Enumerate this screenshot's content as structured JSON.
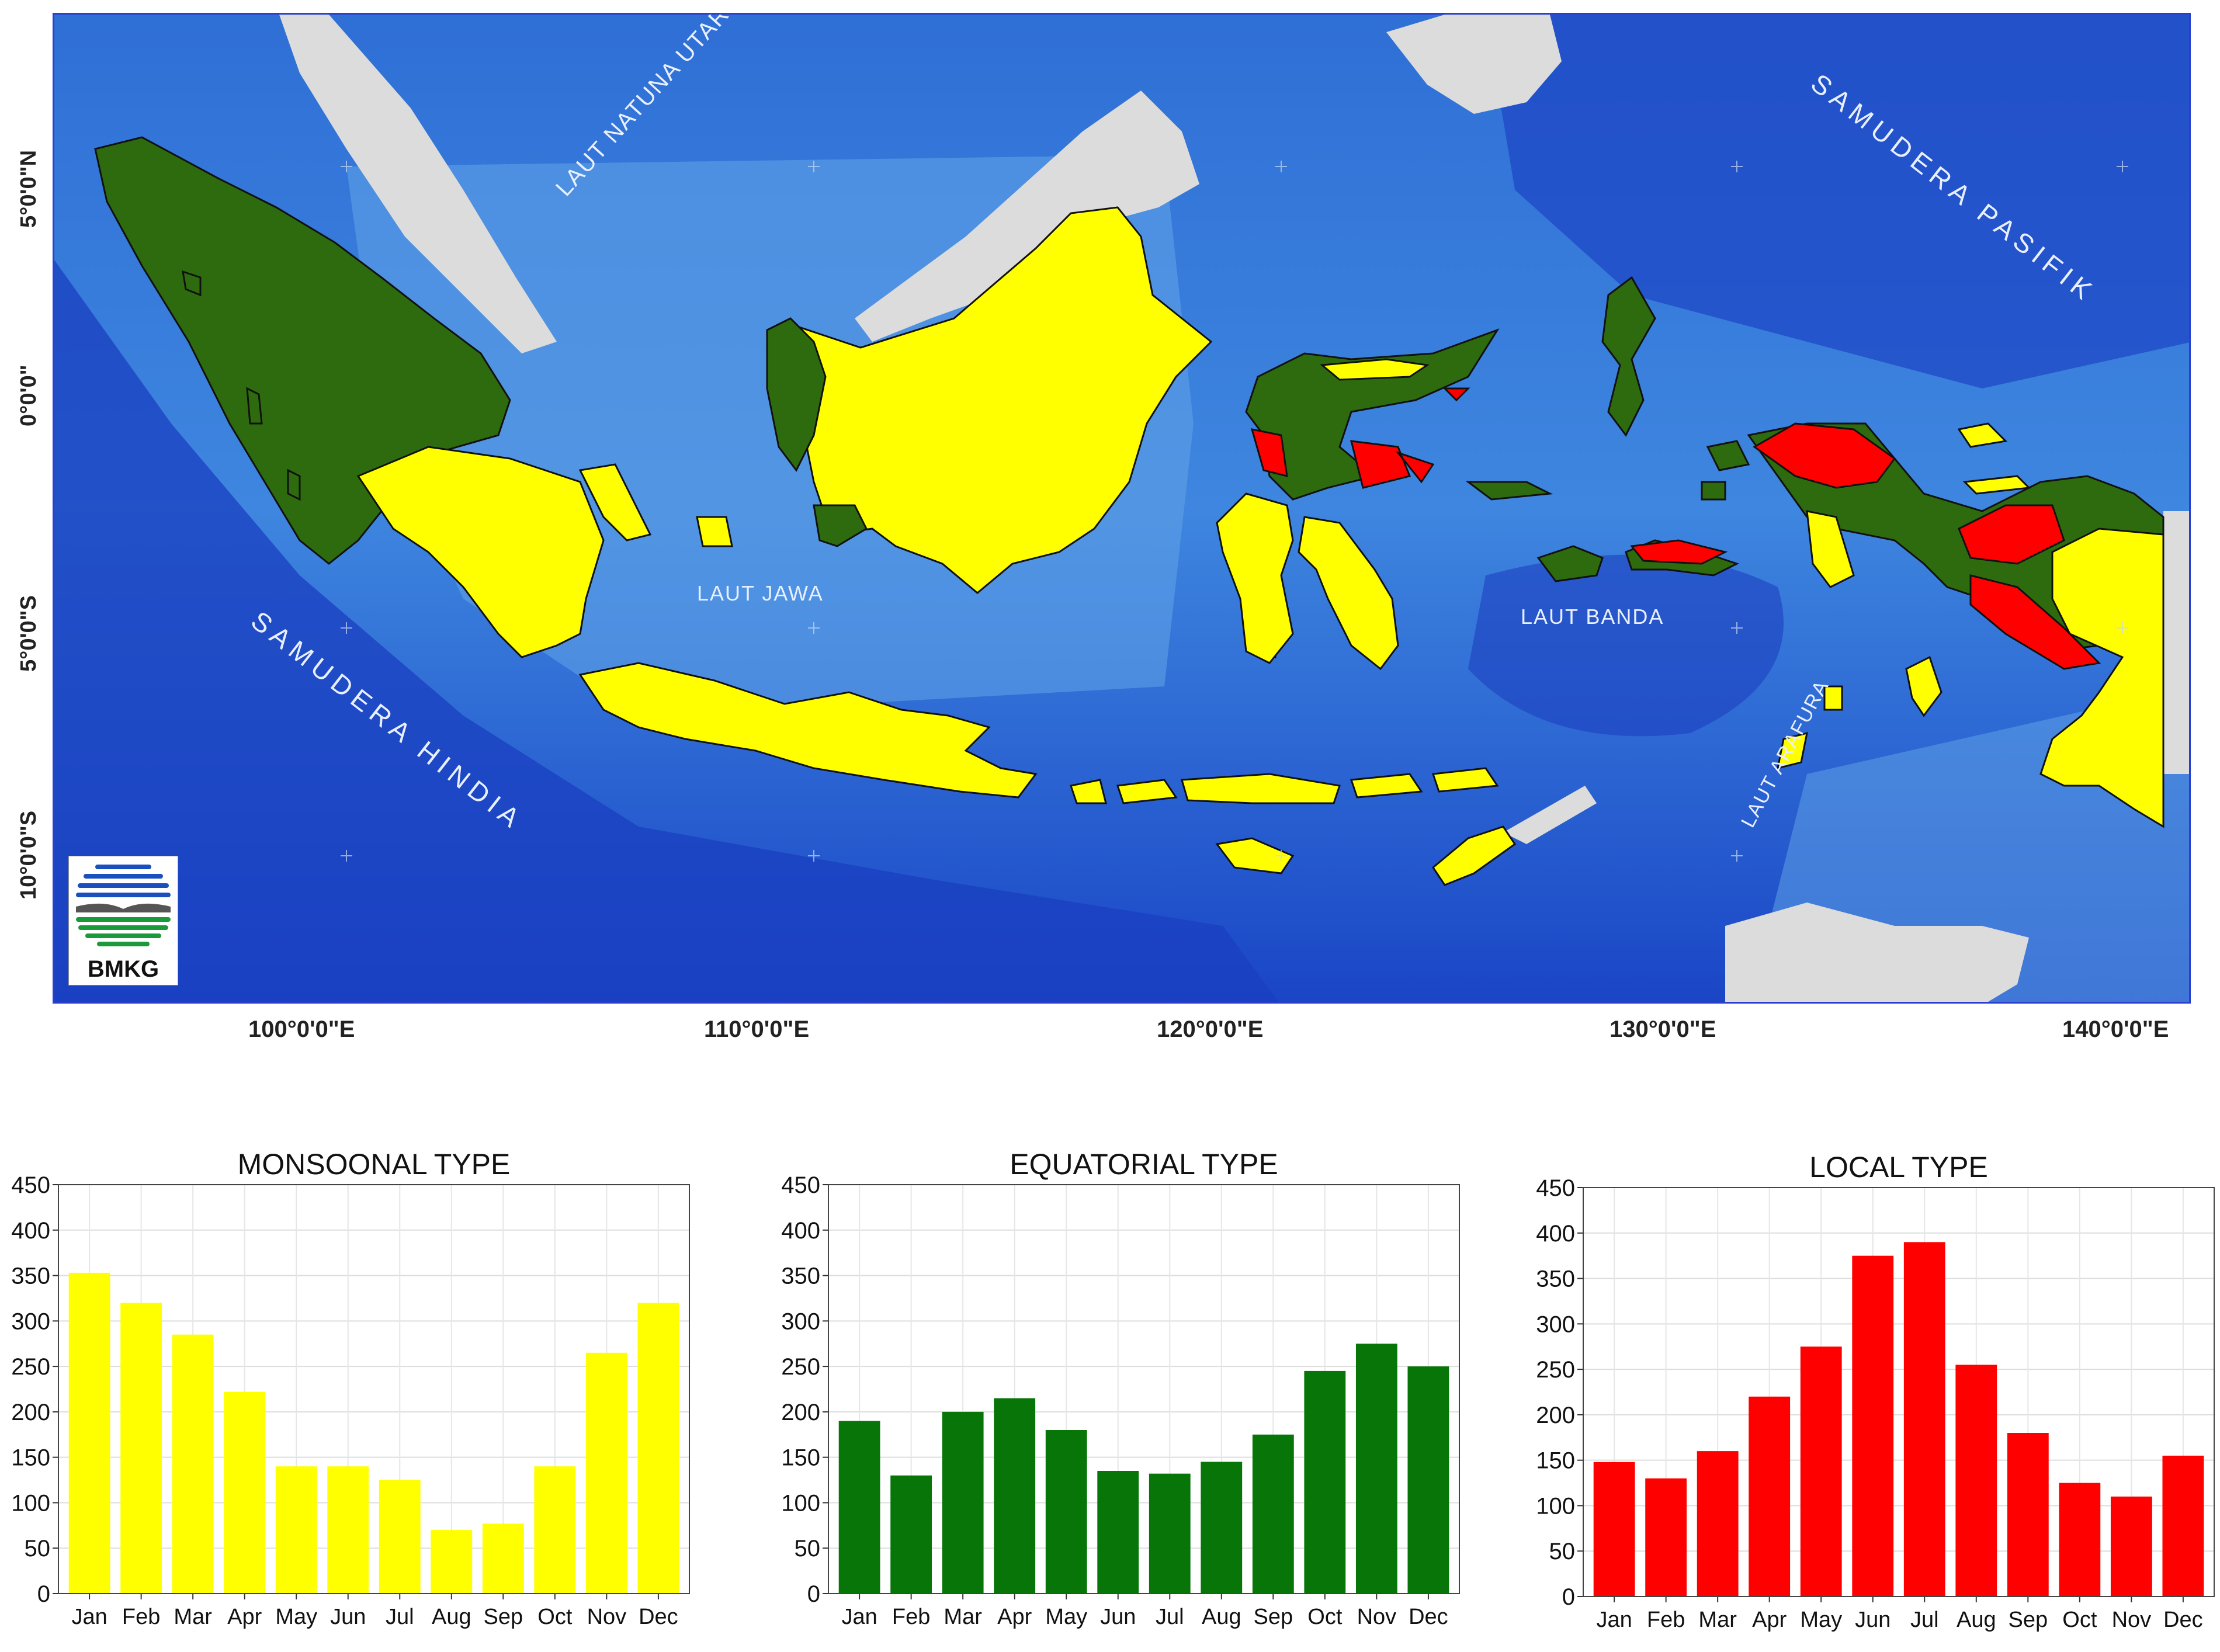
{
  "map": {
    "sea_labels": {
      "natuna": "LAUT NATUNA UTARA",
      "jawa": "LAUT JAWA",
      "banda": "LAUT BANDA",
      "arafura": "LAUT ARAFURA",
      "hindia": "SAMUDERA HINDIA",
      "pasifik": "SAMUDERA PASIFIK"
    },
    "lat_labels": [
      "5°0'0\"N",
      "0°0'0\"",
      "5°0'0\"S",
      "10°0'0\"S"
    ],
    "lon_labels": [
      "100°0'0\"E",
      "110°0'0\"E",
      "120°0'0\"E",
      "130°0'0\"E",
      "140°0'0\"E"
    ],
    "logo_text": "BMKG",
    "colors": {
      "monsoonal": "#ffff00",
      "equatorial": "#2e6b0f",
      "local": "#ff0000",
      "neighbor_land": "#dcdcdc",
      "sea": "#3c78d8"
    }
  },
  "chart_data": [
    {
      "type": "bar",
      "title": "MONSOONAL TYPE",
      "categories": [
        "Jan",
        "Feb",
        "Mar",
        "Apr",
        "May",
        "Jun",
        "Jul",
        "Aug",
        "Sep",
        "Oct",
        "Nov",
        "Dec"
      ],
      "values": [
        353,
        320,
        285,
        222,
        140,
        140,
        125,
        70,
        77,
        140,
        265,
        320
      ],
      "ylim": [
        0,
        450
      ],
      "yticks": [
        0,
        50,
        100,
        150,
        200,
        250,
        300,
        350,
        400,
        450
      ],
      "color": "#ffff00",
      "grid": true
    },
    {
      "type": "bar",
      "title": "EQUATORIAL TYPE",
      "categories": [
        "Jan",
        "Feb",
        "Mar",
        "Apr",
        "May",
        "Jun",
        "Jul",
        "Aug",
        "Sep",
        "Oct",
        "Nov",
        "Dec"
      ],
      "values": [
        190,
        130,
        200,
        215,
        180,
        135,
        132,
        145,
        175,
        245,
        275,
        250
      ],
      "ylim": [
        0,
        450
      ],
      "yticks": [
        0,
        50,
        100,
        150,
        200,
        250,
        300,
        350,
        400,
        450
      ],
      "color": "#077507",
      "grid": true
    },
    {
      "type": "bar",
      "title": "LOCAL TYPE",
      "categories": [
        "Jan",
        "Feb",
        "Mar",
        "Apr",
        "May",
        "Jun",
        "Jul",
        "Aug",
        "Sep",
        "Oct",
        "Nov",
        "Dec"
      ],
      "values": [
        148,
        130,
        160,
        220,
        275,
        375,
        390,
        255,
        180,
        125,
        110,
        155
      ],
      "ylim": [
        0,
        450
      ],
      "yticks": [
        0,
        50,
        100,
        150,
        200,
        250,
        300,
        350,
        400,
        450
      ],
      "color": "#ff0000",
      "grid": true
    }
  ]
}
